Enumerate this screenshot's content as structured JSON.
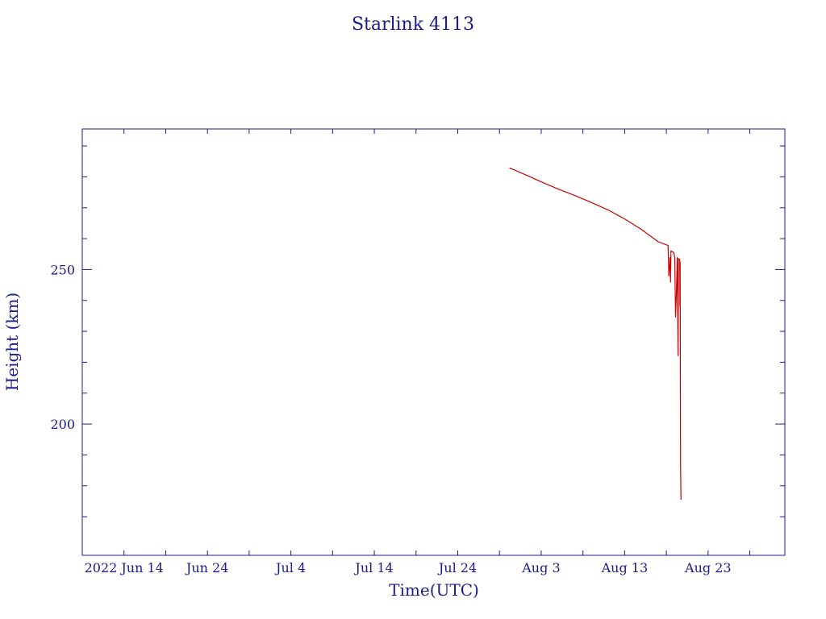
{
  "chart_data": {
    "type": "line",
    "title": "Starlink 4113",
    "xlabel": "Time(UTC)",
    "ylabel": "Height (km)",
    "colors": {
      "axis": "#1a1a8c",
      "series": "#cc0000"
    },
    "grid": false,
    "xlim": [
      0,
      84.2
    ],
    "ylim": [
      157.5,
      295.5
    ],
    "x_tick_labels": [
      {
        "x": 5,
        "label": "2022 Jun 14"
      },
      {
        "x": 15,
        "label": "Jun 24"
      },
      {
        "x": 25,
        "label": "Jul  4"
      },
      {
        "x": 35,
        "label": "Jul 14"
      },
      {
        "x": 45,
        "label": "Jul 24"
      },
      {
        "x": 55,
        "label": "Aug  3"
      },
      {
        "x": 65,
        "label": "Aug 13"
      },
      {
        "x": 75,
        "label": "Aug 23"
      }
    ],
    "x_minor_ticks": [
      5,
      10,
      15,
      20,
      25,
      30,
      35,
      40,
      45,
      50,
      55,
      60,
      65,
      70,
      75,
      80
    ],
    "y_ticks": [
      200,
      250
    ],
    "y_minor_ticks": [
      170,
      180,
      190,
      200,
      210,
      220,
      230,
      240,
      250,
      260,
      270,
      280,
      290
    ],
    "series": [
      {
        "values": [
          [
            51.2,
            282.9
          ],
          [
            53.0,
            280.8
          ],
          [
            55.0,
            278.4
          ],
          [
            57.0,
            276.1
          ],
          [
            59.0,
            274.0
          ],
          [
            61.0,
            271.7
          ],
          [
            63.0,
            269.3
          ],
          [
            65.0,
            266.4
          ],
          [
            67.0,
            263.0
          ],
          [
            69.0,
            259.0
          ],
          [
            70.2,
            257.8
          ],
          [
            70.3,
            247.8
          ],
          [
            70.45,
            254.0
          ],
          [
            70.5,
            245.8
          ],
          [
            70.55,
            256.0
          ],
          [
            70.9,
            255.5
          ],
          [
            71.0,
            253.8
          ],
          [
            71.1,
            234.5
          ],
          [
            71.2,
            242.0
          ],
          [
            71.3,
            254.0
          ],
          [
            71.4,
            222.0
          ],
          [
            71.45,
            253.5
          ],
          [
            71.6,
            253.2
          ],
          [
            71.62,
            238.0
          ],
          [
            71.65,
            252.5
          ],
          [
            71.7,
            187.5
          ],
          [
            71.75,
            175.5
          ]
        ]
      }
    ]
  }
}
